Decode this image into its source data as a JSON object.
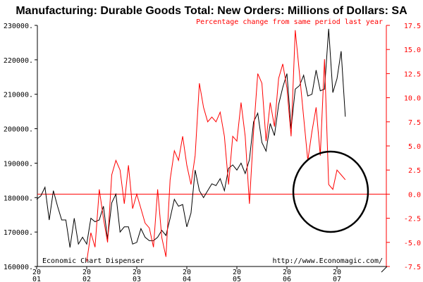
{
  "chart_data": {
    "type": "line",
    "title": "Manufacturing: Durable Goods Total: New Orders: Millions of Dollars: SA",
    "right_axis_label": "Percentage change from same period last year",
    "left_ylim": [
      160000,
      230000
    ],
    "right_ylim": [
      -7.5,
      17.5
    ],
    "left_ticks": [
      "230000.",
      "220000.",
      "210000.",
      "200000.",
      "190000.",
      "180000.",
      "170000.",
      "160000."
    ],
    "right_ticks": [
      "17.5",
      "15.0",
      "12.5",
      "10.0",
      "7.5",
      "5.0",
      "2.5",
      "0.0",
      "-2.5",
      "-5.0",
      "-7.5"
    ],
    "x_ticks": [
      [
        "20",
        "01"
      ],
      [
        "20",
        "02"
      ],
      [
        "20",
        "03"
      ],
      [
        "20",
        "04"
      ],
      [
        "20",
        "05"
      ],
      [
        "20",
        "06"
      ],
      [
        "20",
        "07"
      ]
    ],
    "footer_left": "Economic Chart Dispenser",
    "footer_right": "http://www.Economagic.com/",
    "series": [
      {
        "name": "New Orders (Millions of Dollars)",
        "axis": "left",
        "color": "#000000",
        "start": "2001-01",
        "values": [
          179500,
          180500,
          183000,
          173500,
          182000,
          177500,
          173500,
          173500,
          165500,
          174000,
          166500,
          168500,
          166500,
          174000,
          173000,
          173500,
          177500,
          168000,
          178500,
          181000,
          170000,
          171500,
          171500,
          166500,
          167000,
          171000,
          168500,
          167500,
          167500,
          168500,
          170500,
          169000,
          174000,
          179500,
          177500,
          178000,
          171500,
          175500,
          188000,
          182000,
          180000,
          182000,
          184000,
          183500,
          185500,
          182000,
          188500,
          189500,
          188000,
          190000,
          187000,
          191000,
          202000,
          204500,
          196000,
          193500,
          201500,
          198000,
          207000,
          212000,
          216000,
          200000,
          211500,
          212500,
          215500,
          209500,
          210000,
          217000,
          211000,
          211500,
          229000,
          210500,
          214500,
          222500,
          203500
        ]
      },
      {
        "name": "Percentage change from same period last year",
        "axis": "right",
        "color": "#ff0000",
        "start": "2002-01",
        "values": [
          -7,
          -4,
          -5.5,
          0.5,
          -2.5,
          -5,
          2,
          3.5,
          2.5,
          -1,
          3,
          -1.5,
          0,
          -1.5,
          -3,
          -3.5,
          -5.5,
          0.5,
          -4.5,
          -6.5,
          1.5,
          4.5,
          3.5,
          6,
          3,
          1,
          4,
          11.5,
          9,
          7.5,
          8,
          7.5,
          8.5,
          6,
          1,
          6,
          5.5,
          9.5,
          6,
          -1,
          6.5,
          12.5,
          11.5,
          5.5,
          9.5,
          7,
          12,
          13.5,
          11,
          6,
          17,
          12.5,
          8,
          3.5,
          6.5,
          9,
          4,
          14,
          1,
          0.5,
          2.5,
          2,
          1.5
        ]
      }
    ],
    "annotation": "ellipse around 2006-2007 decline"
  }
}
